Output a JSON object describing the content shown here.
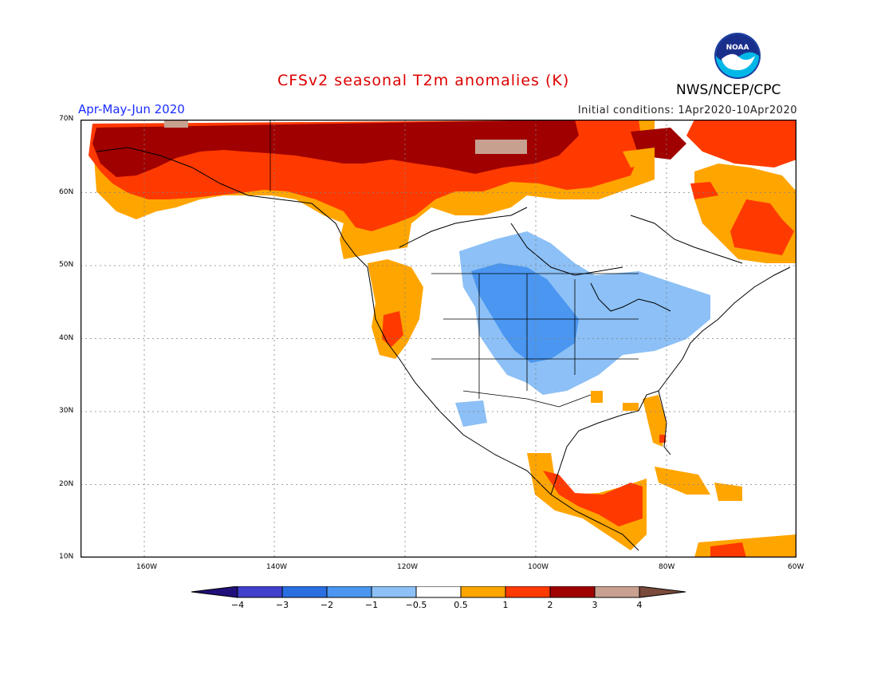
{
  "title": "CFSv2 seasonal T2m anomalies (K)",
  "season": "Apr-May-Jun 2020",
  "initial_conditions": "Initial conditions: 1Apr2020-10Apr2020",
  "agency": "NWS/NCEP/CPC",
  "logo_text": "NOAA",
  "lat_labels": [
    "70N",
    "60N",
    "50N",
    "40N",
    "30N",
    "20N",
    "10N"
  ],
  "lon_labels": [
    "160W",
    "140W",
    "120W",
    "100W",
    "80W",
    "60W"
  ],
  "colorbar": {
    "labels": [
      "−4",
      "−3",
      "−2",
      "−1",
      "−0.5",
      "0.5",
      "1",
      "2",
      "3",
      "4"
    ],
    "colors": [
      "#20107a",
      "#4040cc",
      "#2a6ee0",
      "#4a96f0",
      "#8cc0f6",
      "#ffffff",
      "#ffa500",
      "#ff3a00",
      "#a00000",
      "#c8a090",
      "#7a4a3a"
    ]
  },
  "regions": {
    "very_warm": [
      "Northern Alaska",
      "Northern Yukon and Northwest Territories"
    ],
    "warm": [
      "Alaska",
      "Western Canada",
      "Northeast Canada",
      "Southern Mexico and Central America"
    ],
    "mild_warm": [
      "US West Coast",
      "Florida",
      "Caribbean"
    ],
    "cool": [
      "Northern Great Plains",
      "Upper Midwest",
      "Great Lakes",
      "Central Plains"
    ],
    "neutral": [
      "Central Canada",
      "Southwestern US",
      "Southeastern US"
    ]
  }
}
